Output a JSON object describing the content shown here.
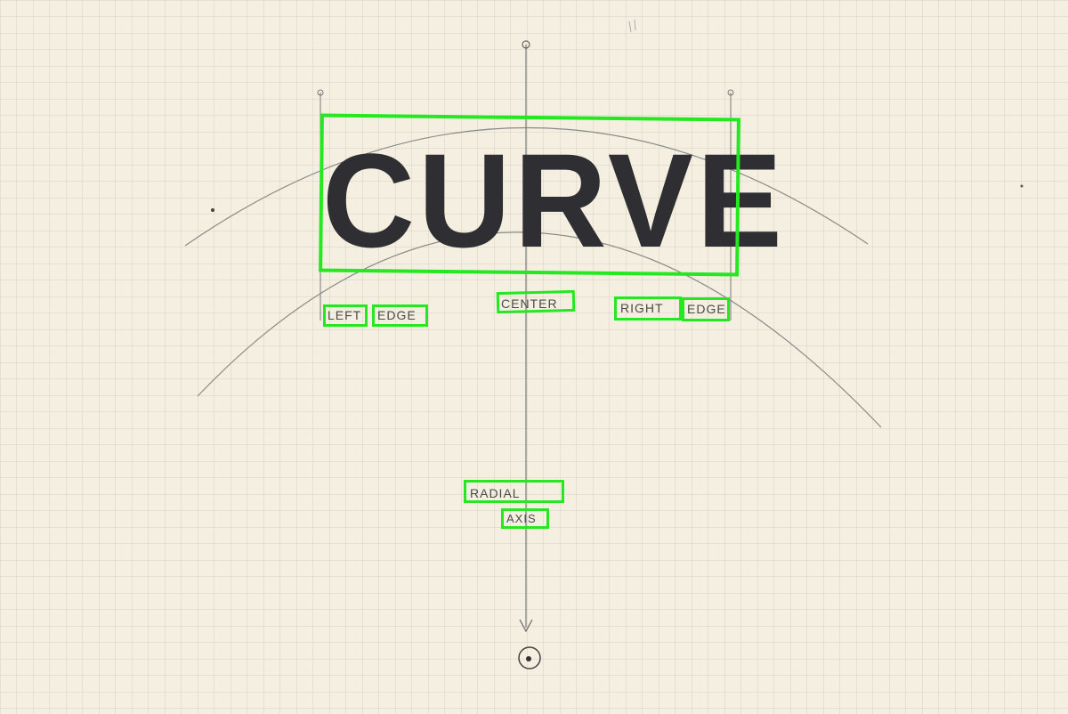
{
  "sketch": {
    "title": "CURVE",
    "labels": {
      "left_1": "LEFT",
      "left_2": "EDGE",
      "center": "CENTER",
      "right_1": "RIGHT",
      "right_2": "EDGE",
      "radial": "RADIAL",
      "axis": "AXIS"
    },
    "colors": {
      "paper": "#f4efe0",
      "grid": "#d9d5c8",
      "pencil": "#6b6b6b",
      "dark_pencil": "#2f2f33",
      "highlight": "#25e820"
    }
  }
}
